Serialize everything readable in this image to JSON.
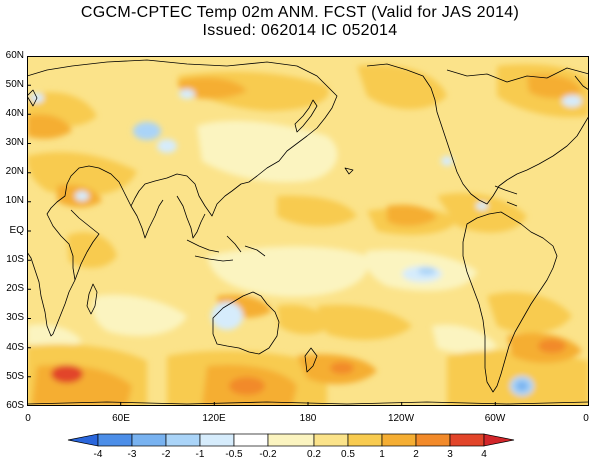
{
  "title": {
    "line1": "CGCM-CPTEC Temp 02m ANM. FCST  (Valid for JAS 2014)",
    "line2": "Issued:  062014 IC 052014"
  },
  "map": {
    "variable": "2m temperature anomaly forecast",
    "region": "global, 60N to 60S",
    "lat_labels": [
      "60N",
      "50N",
      "40N",
      "30N",
      "20N",
      "10N",
      "EQ",
      "10S",
      "20S",
      "30S",
      "40S",
      "50S",
      "60S"
    ],
    "lon_labels": [
      "0",
      "60E",
      "120E",
      "180",
      "120W",
      "60W",
      "0"
    ]
  },
  "colorbar": {
    "labels": [
      "-4",
      "-3",
      "-2",
      "-1",
      "-0.5",
      "-0.2",
      "0.2",
      "0.5",
      "1",
      "2",
      "3",
      "4"
    ],
    "colors": [
      "#2a66dc",
      "#4c8ee8",
      "#78b2f0",
      "#aad4f8",
      "#d6ecfc",
      "#ffffff",
      "#fbf4c0",
      "#fbe38a",
      "#f8cb50",
      "#f5ae33",
      "#f28a2a",
      "#e2452a",
      "#d2262a"
    ]
  }
}
